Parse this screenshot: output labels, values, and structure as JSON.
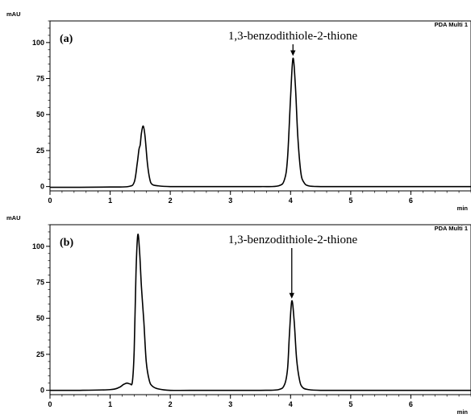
{
  "chart_data": [
    {
      "type": "line",
      "panel_label": "(a)",
      "ylabel": "mAU",
      "xlabel": "min",
      "legend": "PDA Multi 1",
      "legend_placement": "top-right",
      "grid": false,
      "xlim": [
        0,
        7
      ],
      "ylim": [
        -3,
        115
      ],
      "xticks": [
        "0",
        "1",
        "2",
        "3",
        "4",
        "5",
        "6"
      ],
      "yticks": [
        "0",
        "25",
        "50",
        "75",
        "100"
      ],
      "annotation": {
        "text": "1,3-benzodithiole-2-thione",
        "x": 4.04,
        "y": 89
      },
      "series": [
        {
          "x": [
            0,
            0.5,
            1.0,
            1.3,
            1.4,
            1.45,
            1.48,
            1.5,
            1.52,
            1.55,
            1.58,
            1.62,
            1.66,
            1.7,
            1.8,
            2.0,
            2.5,
            3.0,
            3.5,
            3.8,
            3.9,
            3.95,
            4.0,
            4.04,
            4.08,
            4.12,
            4.17,
            4.22,
            4.3,
            4.5,
            5.0,
            6.0,
            7.0
          ],
          "y": [
            -0.5,
            -0.5,
            -0.3,
            0,
            3,
            16,
            26,
            29,
            37,
            42,
            35,
            16,
            5,
            1.5,
            0.5,
            0,
            0,
            0,
            0,
            0.5,
            5,
            20,
            62,
            89,
            70,
            35,
            10,
            3,
            0.5,
            0,
            0,
            0,
            0
          ]
        }
      ]
    },
    {
      "type": "line",
      "panel_label": "(b)",
      "ylabel": "mAU",
      "xlabel": "min",
      "legend": "PDA Multi 1",
      "legend_placement": "top-right",
      "grid": false,
      "xlim": [
        0,
        7
      ],
      "ylim": [
        -3,
        115
      ],
      "xticks": [
        "0",
        "1",
        "2",
        "3",
        "4",
        "5",
        "6"
      ],
      "yticks": [
        "0",
        "25",
        "50",
        "75",
        "100"
      ],
      "annotation": {
        "text": "1,3-benzodithiole-2-thione",
        "x": 4.02,
        "y": 62
      },
      "series": [
        {
          "x": [
            0,
            0.5,
            1.0,
            1.15,
            1.22,
            1.28,
            1.33,
            1.37,
            1.4,
            1.43,
            1.46,
            1.49,
            1.52,
            1.56,
            1.6,
            1.65,
            1.7,
            1.8,
            2.0,
            2.5,
            3.0,
            3.5,
            3.8,
            3.9,
            3.95,
            3.98,
            4.02,
            4.06,
            4.1,
            4.15,
            4.2,
            4.3,
            4.5,
            5.0,
            6.0,
            7.0
          ],
          "y": [
            0,
            0,
            0.5,
            2,
            4,
            5,
            4.5,
            6,
            28,
            82,
            108,
            96,
            72,
            48,
            20,
            7,
            3,
            1,
            0,
            0,
            0,
            0,
            0.5,
            4,
            15,
            38,
            62,
            48,
            22,
            7,
            2,
            0.5,
            0,
            0,
            0,
            0
          ]
        }
      ]
    }
  ]
}
